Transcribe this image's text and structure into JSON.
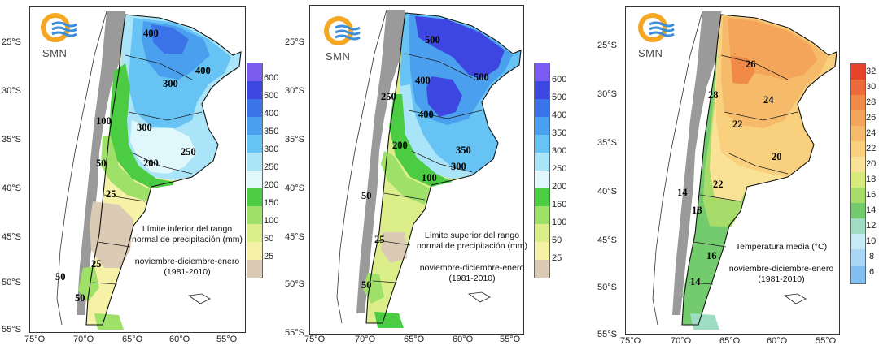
{
  "panels": [
    {
      "id": "precip-lower",
      "caption": {
        "line1": "Límite inferior del rango",
        "line2": "normal de precipitación (mm)",
        "period1": "noviembre-diciembre-enero",
        "period2": "(1981-2010)"
      },
      "legend": {
        "labels": [
          "600",
          "500",
          "400",
          "350",
          "300",
          "250",
          "200",
          "150",
          "100",
          "50",
          "25"
        ],
        "colors": [
          "#7b5cf0",
          "#3d46e0",
          "#3a72e8",
          "#4aa0ef",
          "#67c3f3",
          "#a9e4f8",
          "#e0f7fb",
          "#4ccc43",
          "#9ee068",
          "#dbee8a",
          "#f5f2a8",
          "#dccbb4"
        ]
      },
      "contours": [
        "400",
        "400",
        "300",
        "300",
        "250",
        "200",
        "100",
        "50",
        "25",
        "25",
        "50",
        "50"
      ]
    },
    {
      "id": "precip-upper",
      "caption": {
        "line1": "Límite superior del rango",
        "line2": "normal de precipitación (mm)",
        "period1": "noviembre-diciembre-enero",
        "period2": "(1981-2010)"
      },
      "legend": {
        "labels": [
          "600",
          "500",
          "400",
          "350",
          "300",
          "250",
          "200",
          "150",
          "100",
          "50",
          "25"
        ],
        "colors": [
          "#7b5cf0",
          "#3d46e0",
          "#3a72e8",
          "#4aa0ef",
          "#67c3f3",
          "#a9e4f8",
          "#e0f7fb",
          "#4ccc43",
          "#9ee068",
          "#dbee8a",
          "#f5f2a8",
          "#dccbb4"
        ]
      },
      "contours": [
        "500",
        "500",
        "400",
        "400",
        "250",
        "350",
        "300",
        "200",
        "100",
        "50",
        "25",
        "50"
      ]
    },
    {
      "id": "temp-mean",
      "caption": {
        "line1": "Temperatura media (°C)",
        "period1": "noviembre-diciembre-enero",
        "period2": "(1981-2010)"
      },
      "legend": {
        "labels": [
          "32",
          "30",
          "28",
          "26",
          "24",
          "22",
          "20",
          "18",
          "16",
          "14",
          "12",
          "10",
          "8",
          "6"
        ],
        "colors": [
          "#e8442c",
          "#ee6a3a",
          "#f18a47",
          "#f4a55a",
          "#f6bb6a",
          "#f8d07e",
          "#f9e296",
          "#d7eb7c",
          "#a8dc6a",
          "#74cb6e",
          "#9fdcc4",
          "#c7ebf6",
          "#a9d6f5",
          "#83bff0"
        ]
      },
      "contours": [
        "26",
        "28",
        "24",
        "22",
        "20",
        "22",
        "18",
        "14",
        "16",
        "14"
      ]
    }
  ],
  "axes": {
    "lat_labels": [
      "25°S",
      "30°S",
      "35°S",
      "40°S",
      "45°S",
      "50°S",
      "55°S"
    ],
    "lon_labels": [
      "75°O",
      "70°O",
      "65°O",
      "60°O",
      "55°O"
    ]
  },
  "logo": {
    "text": "SMN"
  }
}
